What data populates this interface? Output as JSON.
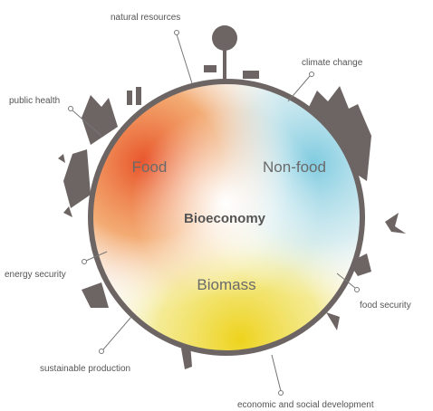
{
  "center": "Bioeconomy",
  "regions": [
    "Food",
    "Non-food",
    "Biomass"
  ],
  "issues": [
    "natural resources",
    "climate change",
    "public health",
    "energy security",
    "food security",
    "sustainable production",
    "economic and social development"
  ]
}
